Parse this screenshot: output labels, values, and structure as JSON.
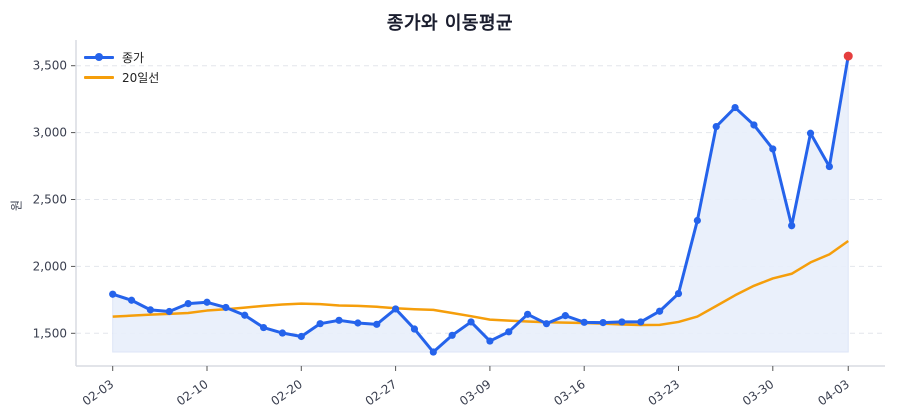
{
  "chart_data": {
    "type": "line",
    "title": "종가와 이동평균",
    "xlabel": "",
    "ylabel": "원",
    "ylim": [
      1250,
      3700
    ],
    "yticks": [
      1500,
      2000,
      2500,
      3000,
      3500
    ],
    "ytick_labels": [
      "1,500",
      "2,000",
      "2,500",
      "3,000",
      "3,500"
    ],
    "xticks": [
      {
        "index": 0,
        "label": "02-03"
      },
      {
        "index": 5,
        "label": "02-10"
      },
      {
        "index": 10,
        "label": "02-20"
      },
      {
        "index": 15,
        "label": "02-27"
      },
      {
        "index": 20,
        "label": "03-09"
      },
      {
        "index": 25,
        "label": "03-16"
      },
      {
        "index": 30,
        "label": "03-23"
      },
      {
        "index": 35,
        "label": "03-30"
      },
      {
        "index": 39,
        "label": "04-03"
      }
    ],
    "grid": "y-dashed",
    "legend_position": "upper left",
    "series": [
      {
        "name": "종가",
        "color": "#2563eb",
        "marker": "circle",
        "fill_below": true,
        "fill_color": "#e8eefb",
        "values": [
          1792,
          1747,
          1675,
          1663,
          1722,
          1732,
          1693,
          1635,
          1543,
          1502,
          1476,
          1572,
          1597,
          1577,
          1567,
          1682,
          1532,
          1360,
          1485,
          1585,
          1442,
          1511,
          1642,
          1572,
          1632,
          1582,
          1580,
          1585,
          1585,
          1665,
          1797,
          2343,
          3045,
          3187,
          3057,
          2878,
          2304,
          2995,
          2746,
          3572
        ],
        "highlight_last": {
          "color": "#e53e3e"
        }
      },
      {
        "name": "20일선",
        "color": "#f59e0b",
        "marker": "none",
        "values": [
          1625,
          1632,
          1640,
          1645,
          1652,
          1670,
          1680,
          1692,
          1705,
          1715,
          1722,
          1718,
          1708,
          1705,
          1698,
          1687,
          1680,
          1675,
          1652,
          1628,
          1602,
          1595,
          1588,
          1583,
          1580,
          1577,
          1572,
          1566,
          1562,
          1563,
          1585,
          1625,
          1704,
          1784,
          1855,
          1910,
          1945,
          2030,
          2090,
          2190
        ]
      }
    ]
  },
  "legend": {
    "items": [
      {
        "label": "종가",
        "color": "#2563eb"
      },
      {
        "label": "20일선",
        "color": "#f59e0b"
      }
    ]
  }
}
